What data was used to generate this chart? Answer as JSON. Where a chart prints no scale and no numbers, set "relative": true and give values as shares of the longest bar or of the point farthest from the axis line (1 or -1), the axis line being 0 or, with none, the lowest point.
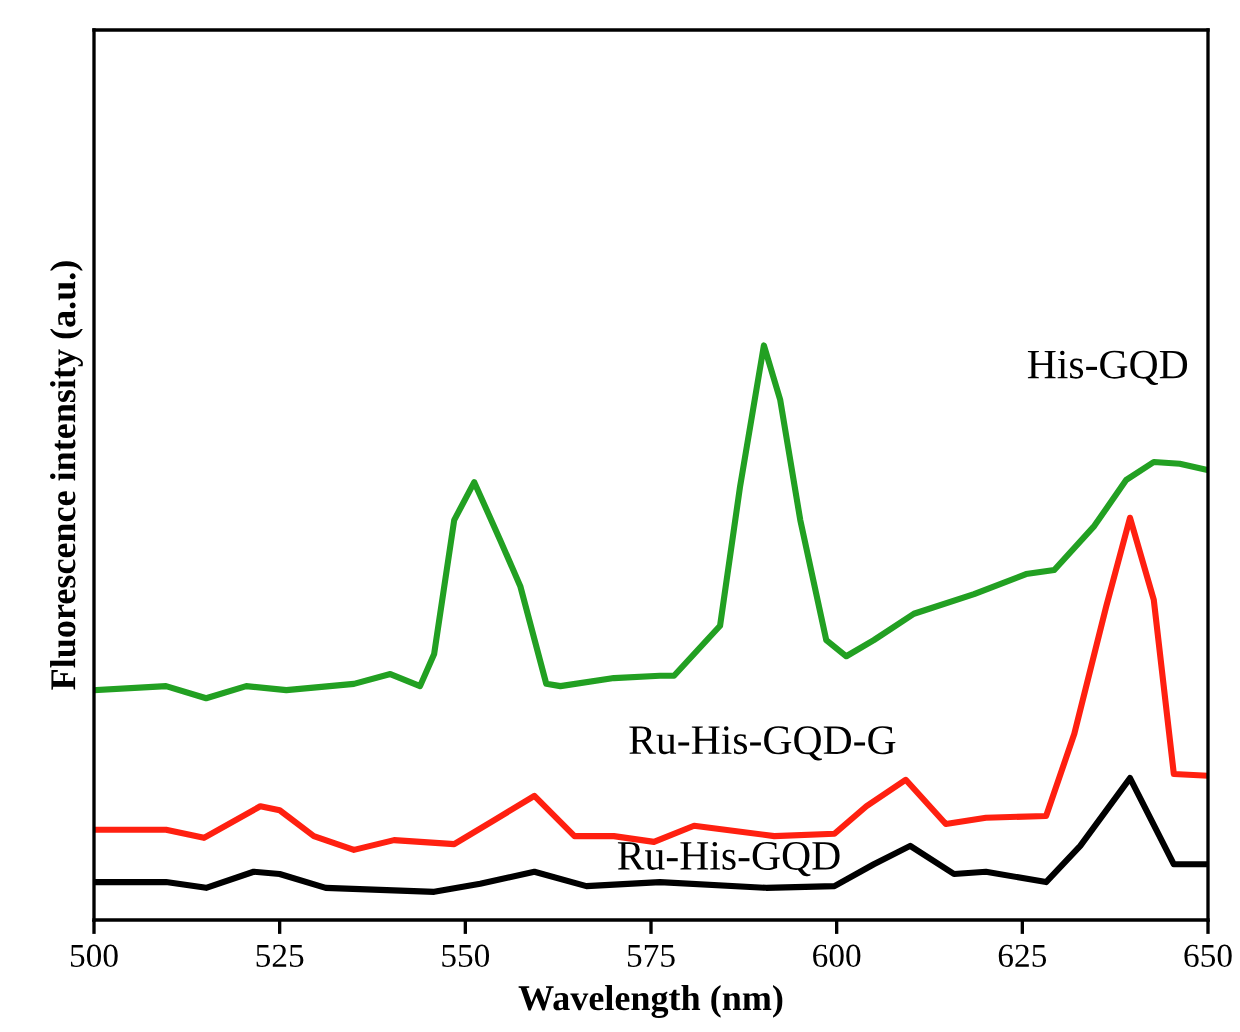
{
  "chart_data": {
    "type": "line",
    "xlabel": "Wavelength (nm)",
    "ylabel": "Fluorescence intensity (a.u.)",
    "relative": true,
    "xlim": [
      500,
      650
    ],
    "xticks": [
      500,
      525,
      550,
      575,
      600,
      625,
      650
    ],
    "tick_labels": "x",
    "grid": false,
    "legend": false,
    "marker": "none",
    "line_style": "solid",
    "series": [
      {
        "name": "His-GQD",
        "color": "#22a022",
        "x": [
          500.3,
          509.7,
          515.1,
          520.5,
          525.9,
          535.0,
          539.9,
          543.9,
          545.8,
          548.5,
          551.2,
          554.7,
          557.4,
          560.9,
          562.8,
          570.0,
          576.2,
          578.1,
          584.3,
          587.0,
          590.2,
          592.4,
          595.1,
          598.6,
          601.3,
          605.0,
          610.4,
          618.5,
          625.5,
          629.3,
          634.7,
          639.0,
          642.7,
          646.2,
          650.0
        ],
        "values": [
          0.4,
          0.407,
          0.386,
          0.407,
          0.4,
          0.411,
          0.428,
          0.407,
          0.463,
          0.696,
          0.762,
          0.661,
          0.581,
          0.411,
          0.407,
          0.421,
          0.425,
          0.425,
          0.512,
          0.755,
          1.0,
          0.905,
          0.696,
          0.487,
          0.459,
          0.487,
          0.533,
          0.567,
          0.602,
          0.609,
          0.686,
          0.766,
          0.797,
          0.794,
          0.783
        ]
      },
      {
        "name": "Ru-His-GQD-G",
        "color": "#ff2010",
        "x": [
          500.3,
          509.7,
          514.8,
          522.4,
          525.0,
          529.6,
          535.0,
          540.4,
          548.5,
          553.9,
          559.3,
          564.7,
          570.0,
          575.4,
          580.8,
          591.6,
          599.7,
          604.0,
          609.3,
          614.7,
          620.1,
          628.2,
          632.0,
          636.3,
          639.5,
          642.7,
          645.4,
          650.0
        ],
        "values": [
          0.157,
          0.157,
          0.143,
          0.198,
          0.191,
          0.146,
          0.122,
          0.139,
          0.132,
          0.174,
          0.216,
          0.146,
          0.146,
          0.136,
          0.164,
          0.146,
          0.15,
          0.198,
          0.244,
          0.167,
          0.178,
          0.181,
          0.324,
          0.546,
          0.7,
          0.557,
          0.254,
          0.251
        ]
      },
      {
        "name": "Ru-His-GQD",
        "color": "#000000",
        "x": [
          500.3,
          509.7,
          515.1,
          521.5,
          525.0,
          531.2,
          545.8,
          552.0,
          559.3,
          566.3,
          576.2,
          590.5,
          599.7,
          605.0,
          609.9,
          615.8,
          620.1,
          628.2,
          632.8,
          639.5,
          645.4,
          650.0
        ],
        "values": [
          0.066,
          0.066,
          0.056,
          0.084,
          0.08,
          0.056,
          0.049,
          0.063,
          0.084,
          0.059,
          0.066,
          0.056,
          0.059,
          0.097,
          0.129,
          0.08,
          0.084,
          0.066,
          0.129,
          0.247,
          0.097,
          0.097
        ]
      }
    ]
  }
}
